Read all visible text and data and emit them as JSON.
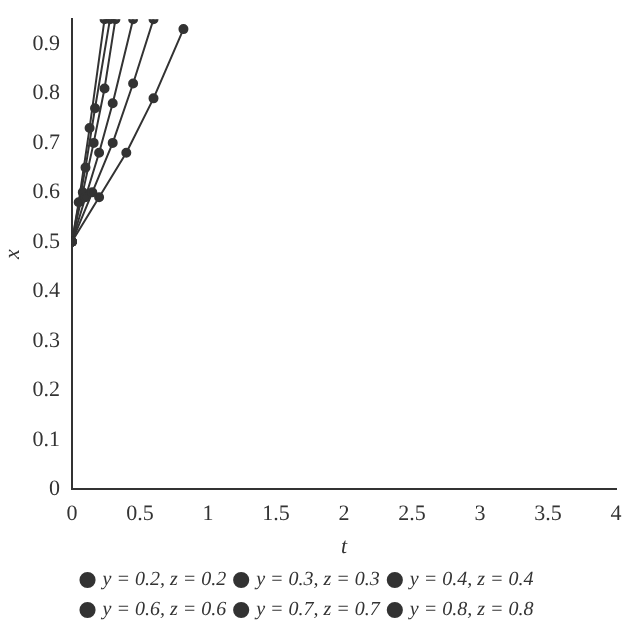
{
  "chart_data": {
    "type": "line",
    "xlabel": "t",
    "ylabel": "x",
    "xlim": [
      0,
      4
    ],
    "xticks": [
      0,
      0.5,
      1,
      1.5,
      2,
      2.5,
      3,
      3.5,
      4
    ],
    "ylim": [
      0,
      0.95
    ],
    "yticks": [
      0,
      0.1,
      0.2,
      0.3,
      0.4,
      0.5,
      0.6,
      0.7,
      0.8,
      0.9
    ],
    "grid": false,
    "legend": "bottom",
    "marker": "circle",
    "line_style": "solid",
    "series": [
      {
        "name": "y = 0.2, z = 0.2",
        "color": "#333333",
        "x": [
          0,
          0.2,
          0.4,
          0.6,
          0.82
        ],
        "values": [
          0.5,
          0.59,
          0.68,
          0.79,
          0.93
        ]
      },
      {
        "name": "y = 0.3, z = 0.3",
        "color": "#333333",
        "x": [
          0,
          0.15,
          0.3,
          0.45,
          0.6
        ],
        "values": [
          0.5,
          0.6,
          0.7,
          0.82,
          0.95
        ]
      },
      {
        "name": "y = 0.4, z = 0.4",
        "color": "#333333",
        "x": [
          0,
          0.1,
          0.2,
          0.3,
          0.45
        ],
        "values": [
          0.5,
          0.59,
          0.68,
          0.78,
          0.95
        ]
      },
      {
        "name": "y = 0.6, z = 0.6",
        "color": "#333333",
        "x": [
          0,
          0.08,
          0.16,
          0.24,
          0.32
        ],
        "values": [
          0.5,
          0.6,
          0.7,
          0.81,
          0.95
        ]
      },
      {
        "name": "y = 0.7, z = 0.7",
        "color": "#333333",
        "x": [
          0,
          0.1,
          0.17,
          0.28
        ],
        "values": [
          0.5,
          0.65,
          0.77,
          0.95
        ]
      },
      {
        "name": "y = 0.8, z = 0.8",
        "color": "#333333",
        "x": [
          0,
          0.05,
          0.13,
          0.24
        ],
        "values": [
          0.5,
          0.58,
          0.73,
          0.95
        ]
      }
    ]
  }
}
